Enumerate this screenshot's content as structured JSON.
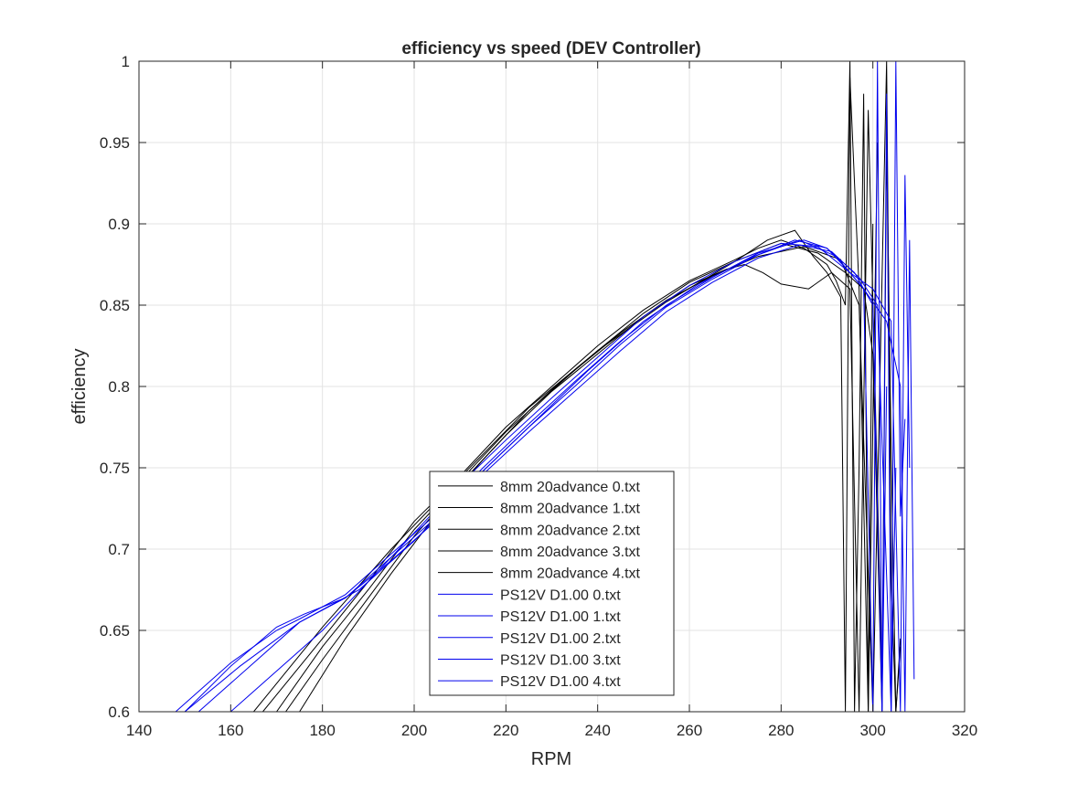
{
  "chart_data": {
    "type": "line",
    "title": "efficiency vs speed (DEV Controller)",
    "xlabel": "RPM",
    "ylabel": "efficiency",
    "xlim": [
      140,
      320
    ],
    "ylim": [
      0.6,
      1.0
    ],
    "xticks": [
      140,
      160,
      180,
      200,
      220,
      240,
      260,
      280,
      300,
      320
    ],
    "yticks": [
      0.6,
      0.65,
      0.7,
      0.75,
      0.8,
      0.85,
      0.9,
      0.95,
      1
    ],
    "xtick_labels": [
      "140",
      "160",
      "180",
      "200",
      "220",
      "240",
      "260",
      "280",
      "300",
      "320"
    ],
    "ytick_labels": [
      "0.6",
      "0.65",
      "0.7",
      "0.75",
      "0.8",
      "0.85",
      "0.9",
      "0.95",
      "1"
    ],
    "grid": true,
    "legend_position": "lower-center",
    "series": [
      {
        "name": "8mm 20advance 0.txt",
        "color": "#000000",
        "x": [
          167,
          180,
          190,
          200,
          210,
          220,
          230,
          240,
          250,
          260,
          270,
          275,
          280,
          285,
          290,
          292,
          294,
          295,
          296,
          297,
          298,
          299,
          300
        ],
        "y": [
          0.6,
          0.645,
          0.68,
          0.717,
          0.745,
          0.775,
          0.8,
          0.825,
          0.847,
          0.865,
          0.878,
          0.885,
          0.89,
          0.885,
          0.875,
          0.865,
          0.85,
          1.0,
          0.6,
          0.75,
          0.98,
          0.6,
          0.9
        ]
      },
      {
        "name": "8mm 20advance 1.txt",
        "color": "#000000",
        "x": [
          170,
          180,
          190,
          200,
          210,
          220,
          230,
          240,
          250,
          260,
          270,
          277,
          283,
          287,
          290,
          293,
          294,
          295,
          297,
          299,
          301
        ],
        "y": [
          0.6,
          0.64,
          0.675,
          0.712,
          0.742,
          0.772,
          0.798,
          0.822,
          0.845,
          0.864,
          0.877,
          0.89,
          0.896,
          0.88,
          0.87,
          0.855,
          0.6,
          0.99,
          0.86,
          0.6,
          0.95
        ]
      },
      {
        "name": "8mm 20advance 2.txt",
        "color": "#000000",
        "x": [
          172,
          180,
          190,
          200,
          210,
          220,
          230,
          240,
          250,
          260,
          268,
          272,
          276,
          280,
          286,
          291,
          295,
          297,
          299,
          302
        ],
        "y": [
          0.6,
          0.632,
          0.67,
          0.708,
          0.74,
          0.77,
          0.797,
          0.82,
          0.843,
          0.862,
          0.872,
          0.875,
          0.87,
          0.863,
          0.86,
          0.87,
          0.86,
          0.6,
          0.97,
          0.62
        ]
      },
      {
        "name": "8mm 20advance 3.txt",
        "color": "#000000",
        "x": [
          175,
          185,
          195,
          205,
          215,
          225,
          235,
          245,
          255,
          265,
          275,
          285,
          293,
          297,
          300,
          303,
          304,
          305,
          306
        ],
        "y": [
          0.6,
          0.645,
          0.685,
          0.722,
          0.755,
          0.785,
          0.81,
          0.833,
          0.853,
          0.868,
          0.88,
          0.886,
          0.878,
          0.85,
          0.6,
          1.0,
          0.68,
          0.6,
          0.64
        ]
      },
      {
        "name": "8mm 20advance 4.txt",
        "color": "#000000",
        "x": [
          165,
          180,
          195,
          210,
          225,
          240,
          255,
          270,
          280,
          288,
          294,
          298,
          300,
          302,
          303,
          304,
          305,
          306
        ],
        "y": [
          0.6,
          0.652,
          0.7,
          0.744,
          0.787,
          0.822,
          0.852,
          0.877,
          0.888,
          0.882,
          0.87,
          0.86,
          0.82,
          0.6,
          0.95,
          0.76,
          0.6,
          0.645
        ]
      },
      {
        "name": "PS12V D1.00 0.txt",
        "color": "#0000ee",
        "x": [
          148,
          160,
          170,
          175,
          185,
          195,
          205,
          215,
          225,
          235,
          245,
          255,
          265,
          275,
          280,
          285,
          290,
          295,
          298,
          300,
          301,
          302,
          303
        ],
        "y": [
          0.6,
          0.63,
          0.65,
          0.657,
          0.672,
          0.697,
          0.722,
          0.75,
          0.777,
          0.803,
          0.828,
          0.85,
          0.867,
          0.882,
          0.886,
          0.89,
          0.885,
          0.87,
          0.86,
          0.6,
          1.0,
          0.6,
          0.8
        ]
      },
      {
        "name": "PS12V D1.00 1.txt",
        "color": "#0000ee",
        "x": [
          150,
          160,
          170,
          176,
          185,
          195,
          205,
          215,
          225,
          235,
          245,
          255,
          265,
          275,
          283,
          290,
          296,
          300,
          302,
          303,
          304,
          305
        ],
        "y": [
          0.6,
          0.628,
          0.652,
          0.66,
          0.67,
          0.695,
          0.72,
          0.748,
          0.775,
          0.8,
          0.826,
          0.849,
          0.866,
          0.881,
          0.89,
          0.885,
          0.87,
          0.85,
          0.6,
          0.98,
          0.6,
          0.75
        ]
      },
      {
        "name": "PS12V D1.00 2.txt",
        "color": "#0000ee",
        "x": [
          153,
          165,
          175,
          185,
          195,
          205,
          215,
          225,
          235,
          245,
          255,
          265,
          275,
          284,
          291,
          297,
          301,
          304,
          305,
          306,
          307
        ],
        "y": [
          0.6,
          0.63,
          0.655,
          0.67,
          0.693,
          0.718,
          0.746,
          0.772,
          0.797,
          0.822,
          0.846,
          0.864,
          0.879,
          0.887,
          0.883,
          0.867,
          0.85,
          0.6,
          1.0,
          0.72,
          0.78
        ]
      },
      {
        "name": "PS12V D1.00 3.txt",
        "color": "#0000ee",
        "x": [
          160,
          170,
          180,
          190,
          200,
          210,
          220,
          230,
          240,
          250,
          260,
          270,
          280,
          288,
          295,
          300,
          304,
          306,
          307,
          308
        ],
        "y": [
          0.6,
          0.625,
          0.65,
          0.68,
          0.71,
          0.74,
          0.767,
          0.793,
          0.818,
          0.843,
          0.862,
          0.877,
          0.888,
          0.886,
          0.87,
          0.86,
          0.84,
          0.6,
          0.93,
          0.75
        ]
      },
      {
        "name": "PS12V D1.00 4.txt",
        "color": "#0000ee",
        "x": [
          150,
          162,
          175,
          188,
          200,
          212,
          225,
          238,
          250,
          262,
          274,
          284,
          292,
          298,
          303,
          306,
          307,
          308,
          309
        ],
        "y": [
          0.6,
          0.628,
          0.655,
          0.675,
          0.705,
          0.74,
          0.775,
          0.81,
          0.84,
          0.863,
          0.88,
          0.89,
          0.88,
          0.86,
          0.84,
          0.8,
          0.6,
          0.89,
          0.62
        ]
      }
    ]
  }
}
